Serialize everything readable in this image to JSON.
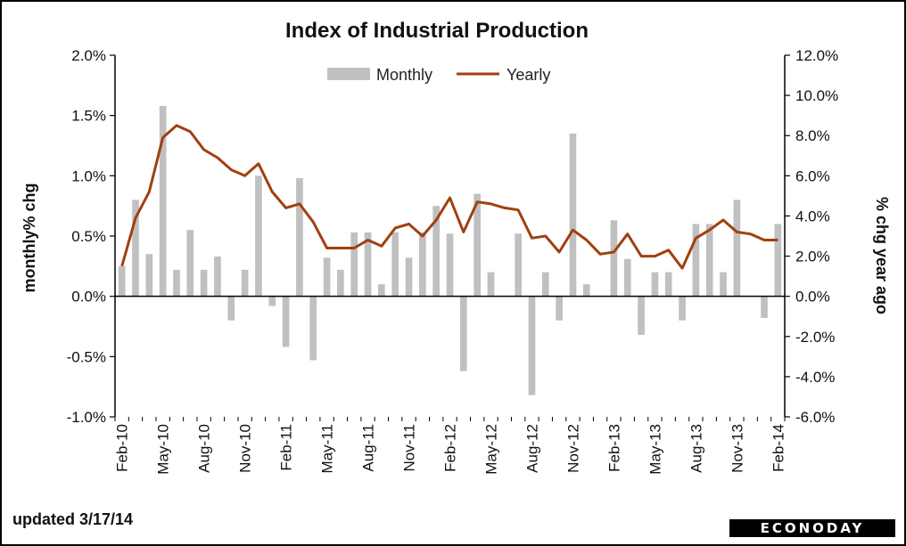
{
  "footer": {
    "updated": "updated 3/17/14"
  },
  "logo": {
    "text": "ECONODAY"
  },
  "chart_data": {
    "type": "bar",
    "title": "Index of Industrial Production",
    "ylabel_left": "monthly% chg",
    "ylabel_right": "% chg year ago",
    "ylim_left": [
      -1.0,
      2.0
    ],
    "ylim_right": [
      -6.0,
      12.0
    ],
    "yticks_left": [
      "2.0%",
      "1.5%",
      "1.0%",
      "0.5%",
      "0.0%",
      "-0.5%",
      "-1.0%"
    ],
    "yticks_right": [
      "12.0%",
      "10.0%",
      "8.0%",
      "6.0%",
      "4.0%",
      "2.0%",
      "0.0%",
      "-2.0%",
      "-4.0%",
      "-6.0%"
    ],
    "legend_position": "top-center",
    "colors": {
      "monthly": "#c0c0c0",
      "yearly": "#a0400f"
    },
    "xtick_labels": [
      "Feb-10",
      "May-10",
      "Aug-10",
      "Nov-10",
      "Feb-11",
      "May-11",
      "Aug-11",
      "Nov-11",
      "Feb-12",
      "May-12",
      "Aug-12",
      "Nov-12",
      "Feb-13",
      "May-13",
      "Aug-13",
      "Nov-13",
      "Feb-14"
    ],
    "xtick_every": 3,
    "categories": [
      "Feb-10",
      "Mar-10",
      "Apr-10",
      "May-10",
      "Jun-10",
      "Jul-10",
      "Aug-10",
      "Sep-10",
      "Oct-10",
      "Nov-10",
      "Dec-10",
      "Jan-11",
      "Feb-11",
      "Mar-11",
      "Apr-11",
      "May-11",
      "Jun-11",
      "Jul-11",
      "Aug-11",
      "Sep-11",
      "Oct-11",
      "Nov-11",
      "Dec-11",
      "Jan-12",
      "Feb-12",
      "Mar-12",
      "Apr-12",
      "May-12",
      "Jun-12",
      "Jul-12",
      "Aug-12",
      "Sep-12",
      "Oct-12",
      "Nov-12",
      "Dec-12",
      "Jan-13",
      "Feb-13",
      "Mar-13",
      "Apr-13",
      "May-13",
      "Jun-13",
      "Jul-13",
      "Aug-13",
      "Sep-13",
      "Oct-13",
      "Nov-13",
      "Dec-13",
      "Jan-14",
      "Feb-14"
    ],
    "series": [
      {
        "name": "Monthly",
        "type": "bar",
        "axis": "left",
        "values": [
          0.25,
          0.8,
          0.35,
          1.58,
          0.22,
          0.55,
          0.22,
          0.33,
          -0.2,
          0.22,
          1.0,
          -0.08,
          -0.42,
          0.98,
          -0.53,
          0.32,
          0.22,
          0.53,
          0.53,
          0.1,
          0.53,
          0.32,
          0.53,
          0.75,
          0.52,
          -0.62,
          0.85,
          0.2,
          0.0,
          0.52,
          -0.82,
          0.2,
          -0.2,
          1.35,
          0.1,
          0.0,
          0.63,
          0.31,
          -0.32,
          0.2,
          0.2,
          -0.2,
          0.6,
          0.6,
          0.2,
          0.8,
          0.0,
          -0.18,
          0.6
        ]
      },
      {
        "name": "Yearly",
        "type": "line",
        "axis": "right",
        "values": [
          1.5,
          3.9,
          5.2,
          7.9,
          8.5,
          8.2,
          7.3,
          6.9,
          6.3,
          6.0,
          6.6,
          5.2,
          4.4,
          4.6,
          3.7,
          2.4,
          2.4,
          2.4,
          2.8,
          2.5,
          3.4,
          3.6,
          3.0,
          3.8,
          4.9,
          3.2,
          4.7,
          4.6,
          4.4,
          4.3,
          2.9,
          3.0,
          2.2,
          3.3,
          2.8,
          2.1,
          2.2,
          3.1,
          2.0,
          2.0,
          2.3,
          1.4,
          2.9,
          3.3,
          3.8,
          3.2,
          3.1,
          2.8,
          2.8
        ]
      }
    ]
  }
}
